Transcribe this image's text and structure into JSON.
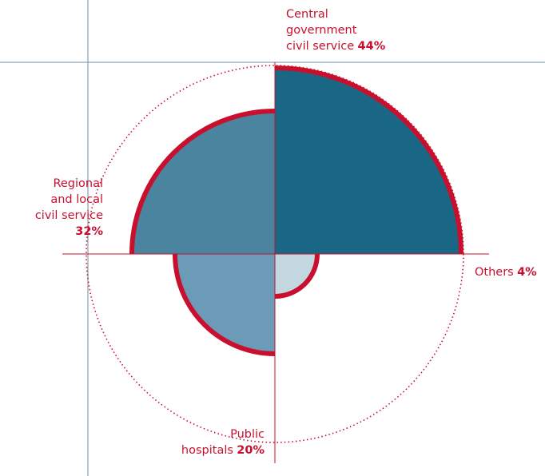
{
  "chart_data": {
    "type": "polar-area",
    "categories": [
      "Central\ngovernment\ncivil service",
      "Regional\nand local\ncivil service",
      "Public\nhospitals",
      "Others"
    ],
    "values": [
      44,
      32,
      20,
      4
    ],
    "value_labels": [
      "44%",
      "32%",
      "20%",
      "4%"
    ],
    "colors": [
      "#1a6785",
      "#4b849f",
      "#6b9bb6",
      "#c3d7e1"
    ],
    "outline_color": "#c8102e"
  }
}
